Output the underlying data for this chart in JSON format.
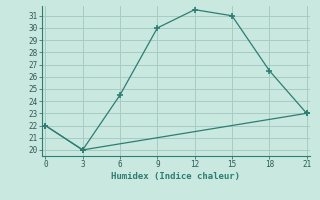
{
  "title": "",
  "xlabel": "Humidex (Indice chaleur)",
  "line1_x": [
    0,
    3,
    6,
    9,
    12,
    15,
    18,
    21
  ],
  "line1_y": [
    22,
    20,
    24.5,
    30,
    31.5,
    31,
    26.5,
    23
  ],
  "line2_x": [
    0,
    3,
    21
  ],
  "line2_y": [
    22,
    20,
    23
  ],
  "line_color": "#2e7d72",
  "bg_color": "#c8e8e0",
  "grid_color": "#a8ccc4",
  "ylim": [
    19.5,
    31.8
  ],
  "xlim": [
    -0.3,
    21.3
  ],
  "yticks": [
    20,
    21,
    22,
    23,
    24,
    25,
    26,
    27,
    28,
    29,
    30,
    31
  ],
  "xticks": [
    0,
    3,
    6,
    9,
    12,
    15,
    18,
    21
  ],
  "marker": "+"
}
